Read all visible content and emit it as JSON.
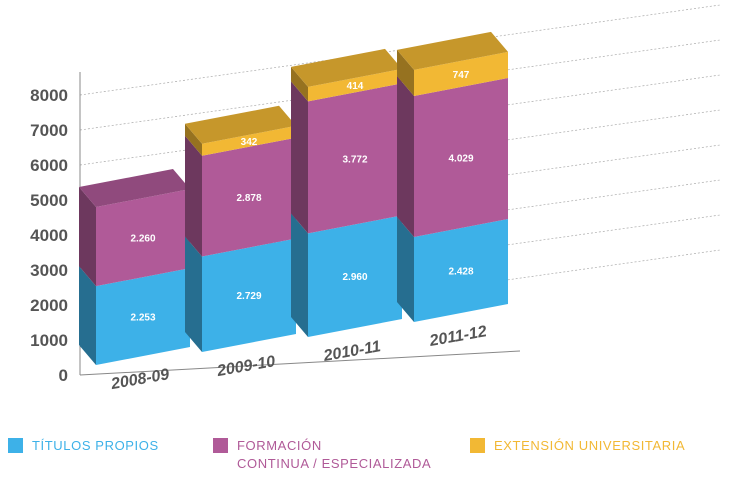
{
  "chart_data": {
    "type": "bar",
    "stacked": true,
    "categories": [
      "2008-09",
      "2009-10",
      "2010-11",
      "2011-12"
    ],
    "series": [
      {
        "name": "TÍTULOS PROPIOS",
        "values": [
          2253,
          2729,
          2960,
          2428
        ],
        "labels": [
          "2.253",
          "2.729",
          "2.960",
          "2.428"
        ],
        "color": "#3db1e8"
      },
      {
        "name": "FORMACIÓN CONTINUA / ESPECIALIZADA",
        "values": [
          2260,
          2878,
          3772,
          4029
        ],
        "labels": [
          "2.260",
          "2.878",
          "3.772",
          "4.029"
        ],
        "color": "#b05a98"
      },
      {
        "name": "EXTENSIÓN UNIVERSITARIA",
        "values": [
          0,
          342,
          414,
          747
        ],
        "labels": [
          "",
          "342",
          "414",
          "747"
        ],
        "color": "#f2b834"
      }
    ],
    "yticks": [
      "0",
      "1000",
      "2000",
      "3000",
      "4000",
      "5000",
      "6000",
      "7000",
      "8000"
    ],
    "ylim": [
      0,
      8000
    ],
    "grid": true,
    "legend_position": "bottom"
  },
  "legend": {
    "items": [
      {
        "line1": "TÍTULOS PROPIOS",
        "line2": "",
        "color": "#3db1e8",
        "text_color": "#3db1e8"
      },
      {
        "line1": "FORMACIÓN",
        "line2": "CONTINUA / ESPECIALIZADA",
        "color": "#b05a98",
        "text_color": "#b05a98"
      },
      {
        "line1": "EXTENSIÓN UNIVERSITARIA",
        "line2": "",
        "color": "#f2b834",
        "text_color": "#f2b834"
      }
    ]
  }
}
